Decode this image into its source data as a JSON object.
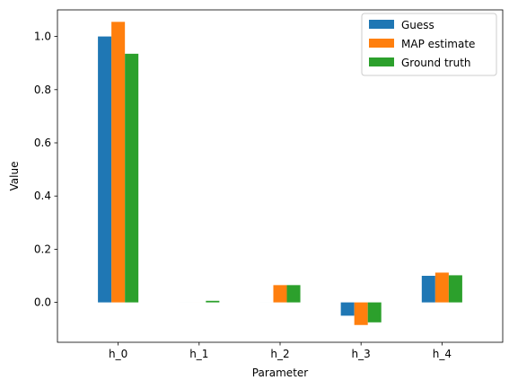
{
  "chart_data": {
    "type": "bar",
    "categories": [
      "h_0",
      "h_1",
      "h_2",
      "h_3",
      "h_4"
    ],
    "series": [
      {
        "name": "Guess",
        "color": "#1f77b4",
        "values": [
          1.0,
          0.0,
          0.0,
          -0.05,
          0.1
        ]
      },
      {
        "name": "MAP estimate",
        "color": "#ff7f0e",
        "values": [
          1.055,
          0.0,
          0.065,
          -0.085,
          0.112
        ]
      },
      {
        "name": "Ground truth",
        "color": "#2ca02c",
        "values": [
          0.935,
          0.006,
          0.065,
          -0.075,
          0.102
        ]
      }
    ],
    "xlabel": "Parameter",
    "ylabel": "Value",
    "ylim": [
      -0.15,
      1.1
    ],
    "yticks": [
      0.0,
      0.2,
      0.4,
      0.6,
      0.8,
      1.0
    ],
    "ytick_labels": [
      "0.0",
      "0.2",
      "0.4",
      "0.6",
      "0.8",
      "1.0"
    ],
    "legend_position": "top-right",
    "grid": false
  }
}
